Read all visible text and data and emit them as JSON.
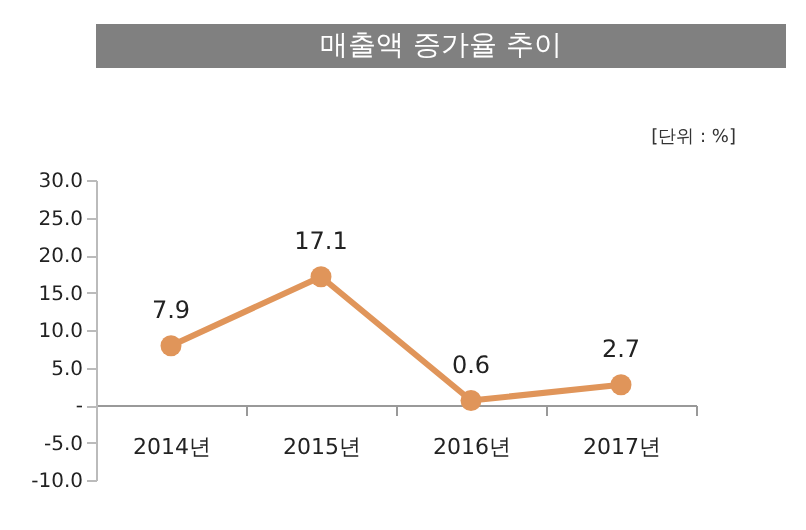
{
  "chart_data": {
    "type": "line",
    "title": "매출액 증가율 추이",
    "annotations": [
      "[단위 : %]"
    ],
    "categories": [
      "2014년",
      "2015년",
      "2016년",
      "2017년"
    ],
    "series": [
      {
        "color": "#e0955a",
        "values": [
          7.9,
          17.1,
          0.6,
          2.7
        ]
      }
    ],
    "ylim": [
      -10,
      30
    ],
    "yticks": [
      {
        "value": -10,
        "label": "-10.0"
      },
      {
        "value": -5,
        "label": "-5.0"
      },
      {
        "value": 0,
        "label": "-"
      },
      {
        "value": 5,
        "label": "5.0"
      },
      {
        "value": 10,
        "label": "10.0"
      },
      {
        "value": 15,
        "label": "15.0"
      },
      {
        "value": 20,
        "label": "20.0"
      },
      {
        "value": 25,
        "label": "25.0"
      },
      {
        "value": 30,
        "label": "30.0"
      }
    ],
    "grid": false,
    "legend": false,
    "marker": "circle",
    "line_style": "solid",
    "data_labels": true
  }
}
